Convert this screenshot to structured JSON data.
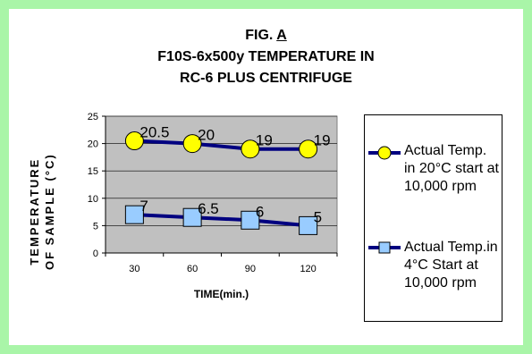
{
  "title": {
    "prefix": "FIG. ",
    "letter": "A",
    "line2": "F10S-6x500y TEMPERATURE IN",
    "line3": "RC-6 PLUS CENTRIFUGE"
  },
  "colors": {
    "frame": "#a9f5a8",
    "plot_area": "#c0c0c0",
    "line": "#000080",
    "series1_marker": "#ffff00",
    "series2_marker": "#99ccff"
  },
  "chart_data": {
    "type": "line",
    "title": "F10S-6x500y TEMPERATURE IN RC-6 PLUS CENTRIFUGE",
    "xlabel": "TIME(min.)",
    "ylabel_lines": [
      "TEMPERATURE",
      "OF SAMPLE (°C)"
    ],
    "categories": [
      "30",
      "60",
      "90",
      "120"
    ],
    "ylim": [
      0,
      25
    ],
    "yticks": [
      "0",
      "5",
      "10",
      "15",
      "20",
      "25"
    ],
    "grid": true,
    "legend_position": "right",
    "series": [
      {
        "name": "Actual Temp. in 20°C start at 10,000 rpm",
        "legend_lines": [
          "Actual Temp.",
          "in 20°C start at",
          "10,000 rpm"
        ],
        "values": [
          20.5,
          20,
          19,
          19
        ],
        "labels": [
          "20.5",
          "20",
          "19",
          "19"
        ],
        "marker": "circle"
      },
      {
        "name": "Actual Temp.in 4°C Start at 10,000 rpm",
        "legend_lines": [
          "Actual Temp.in",
          "4°C Start at",
          "10,000 rpm"
        ],
        "values": [
          7,
          6.5,
          6,
          5
        ],
        "labels": [
          "7",
          "6.5",
          "6",
          "5"
        ],
        "marker": "square"
      }
    ]
  }
}
